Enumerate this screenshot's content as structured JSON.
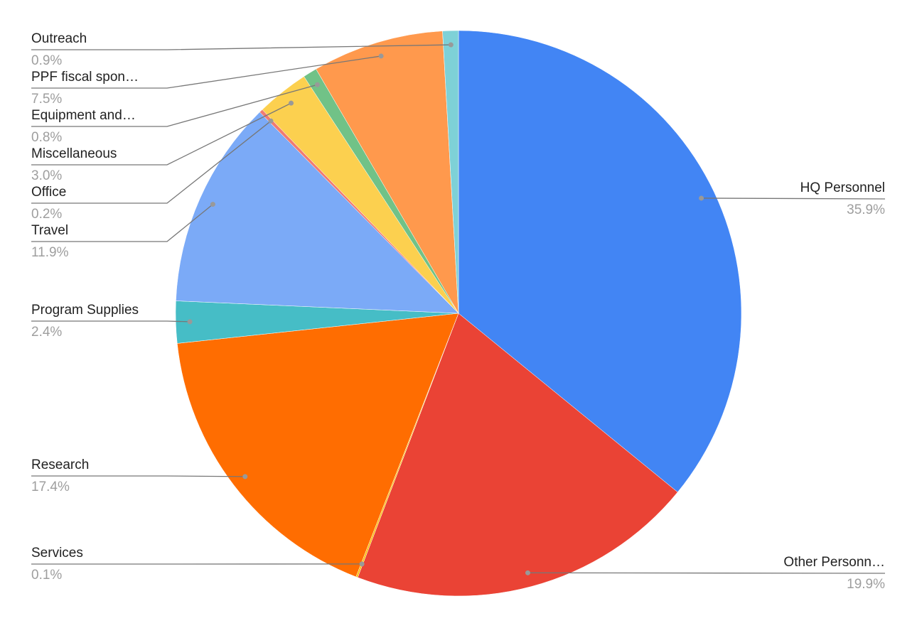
{
  "chart_data": {
    "type": "pie",
    "categories": [
      "HQ Personnel",
      "Other Personn…",
      "Services",
      "Research",
      "Program Supplies",
      "Travel",
      "Office",
      "Miscellaneous",
      "Equipment and…",
      "PPF fiscal spon…",
      "Outreach"
    ],
    "values": [
      35.9,
      19.9,
      0.1,
      17.4,
      2.4,
      11.9,
      0.2,
      3.0,
      0.8,
      7.5,
      0.9
    ],
    "value_labels": [
      "35.9%",
      "19.9%",
      "0.1%",
      "17.4%",
      "2.4%",
      "11.9%",
      "0.2%",
      "3.0%",
      "0.8%",
      "7.5%",
      "0.9%"
    ],
    "colors": [
      "#4285f4",
      "#ea4335",
      "#fbbc04",
      "#ff6d01",
      "#46bdc6",
      "#7baaf7",
      "#f07b72",
      "#fcd04f",
      "#71c287",
      "#ff994d",
      "#7ed1d7"
    ]
  }
}
